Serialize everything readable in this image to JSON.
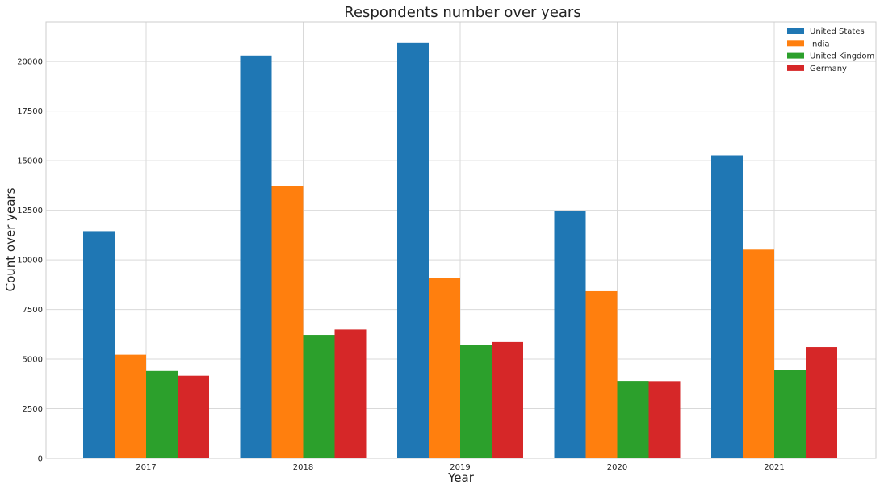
{
  "chart_data": {
    "type": "bar",
    "title": "Respondents number over years",
    "xlabel": "Year",
    "ylabel": "Count over years",
    "categories": [
      "2017",
      "2018",
      "2019",
      "2020",
      "2021"
    ],
    "series": [
      {
        "name": "United States",
        "color": "#1f77b4",
        "values": [
          11450,
          20300,
          20950,
          12480,
          15270
        ]
      },
      {
        "name": "India",
        "color": "#ff7f0e",
        "values": [
          5220,
          13720,
          9080,
          8420,
          10520
        ]
      },
      {
        "name": "United Kingdom",
        "color": "#2ca02c",
        "values": [
          4400,
          6220,
          5720,
          3900,
          4460
        ]
      },
      {
        "name": "Germany",
        "color": "#d62728",
        "values": [
          4160,
          6490,
          5860,
          3890,
          5610
        ]
      }
    ],
    "ylim": [
      0,
      22000
    ],
    "yticks": [
      0,
      2500,
      5000,
      7500,
      10000,
      12500,
      15000,
      17500,
      20000
    ],
    "grid": true,
    "legend_position": "top-right"
  }
}
